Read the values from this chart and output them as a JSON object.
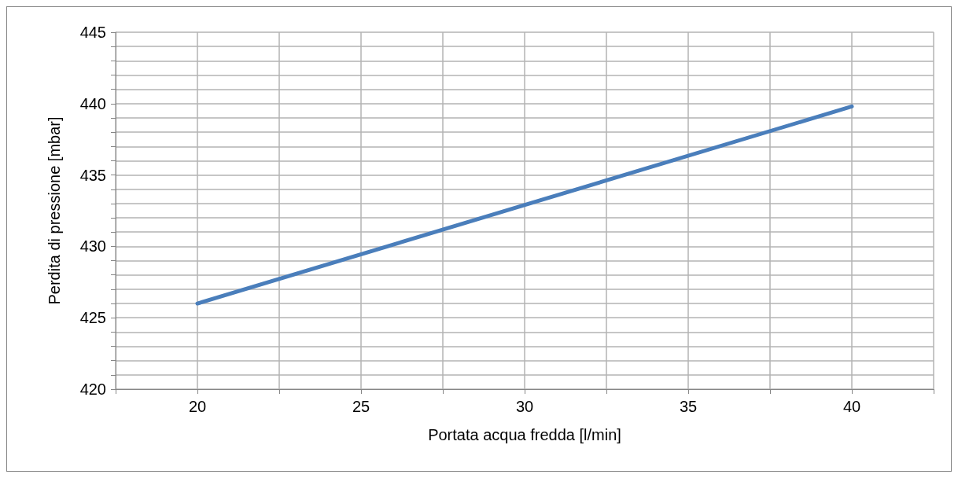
{
  "chart_data": {
    "type": "line",
    "xlabel": "Portata acqua fredda [l/min]",
    "ylabel": "Perdita di pressione [mbar]",
    "x": [
      20,
      40
    ],
    "series": [
      {
        "color": "#4a7ebb",
        "values": [
          426.0,
          439.8
        ]
      }
    ],
    "xlim": [
      17.5,
      42.5
    ],
    "xticks": [
      {
        "value": 17.5,
        "label": null
      },
      20,
      {
        "value": 22.5,
        "label": null
      },
      25,
      {
        "value": 27.5,
        "label": null
      },
      30,
      {
        "value": 32.5,
        "label": null
      },
      35,
      {
        "value": 37.5,
        "label": null
      },
      40,
      {
        "value": 42.5,
        "label": null
      }
    ],
    "ylim": [
      420,
      445
    ],
    "yticks": [
      420,
      {
        "value": 421,
        "label": null
      },
      {
        "value": 422,
        "label": null
      },
      {
        "value": 423,
        "label": null
      },
      {
        "value": 424,
        "label": null
      },
      425,
      {
        "value": 426,
        "label": null
      },
      {
        "value": 427,
        "label": null
      },
      {
        "value": 428,
        "label": null
      },
      {
        "value": 429,
        "label": null
      },
      430,
      {
        "value": 431,
        "label": null
      },
      {
        "value": 432,
        "label": null
      },
      {
        "value": 433,
        "label": null
      },
      {
        "value": 434,
        "label": null
      },
      435,
      {
        "value": 436,
        "label": null
      },
      {
        "value": 437,
        "label": null
      },
      {
        "value": 438,
        "label": null
      },
      {
        "value": 439,
        "label": null
      },
      440,
      {
        "value": 441,
        "label": null
      },
      {
        "value": 442,
        "label": null
      },
      {
        "value": 443,
        "label": null
      },
      {
        "value": 444,
        "label": null
      },
      445
    ],
    "grid": true,
    "marker": "none",
    "line_style": "solid"
  }
}
